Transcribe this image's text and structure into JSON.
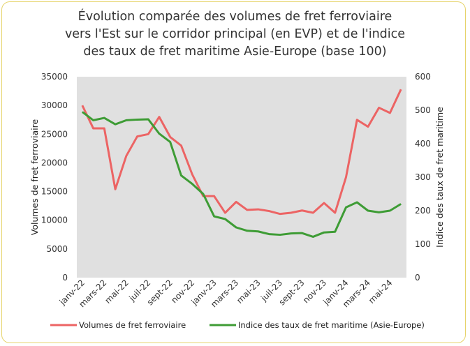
{
  "chart_data": {
    "type": "line",
    "title": "Évolution comparée des volumes de fret ferroviaire vers l'Est sur le corridor principal (en EVP) et de l'indice des taux de fret maritime Asie-Europe (base 100)",
    "title_lines": [
      "Évolution comparée des volumes de fret ferroviaire",
      "vers l'Est sur le corridor principal (en EVP) et de l'indice",
      "des taux de fret maritime Asie-Europe (base 100)"
    ],
    "ylabel_left": "Volumes de fret ferroviaire",
    "ylabel_right": "Indice des taux de fret maritime",
    "ylim_left": [
      0,
      35000
    ],
    "ylim_right": [
      0,
      600
    ],
    "yticks_left": [
      "0",
      "5000",
      "10000",
      "15000",
      "20000",
      "25000",
      "30000",
      "35000"
    ],
    "yticks_right": [
      "0",
      "100",
      "200",
      "300",
      "400",
      "500",
      "600"
    ],
    "x_tick_labels": [
      "janv-22",
      "mars-22",
      "mai-22",
      "juil-22",
      "sept-22",
      "nov-22",
      "janv-23",
      "mars-23",
      "mai-23",
      "juil-23",
      "sept-23",
      "nov-23",
      "janv-24",
      "mars-24",
      "mai-24"
    ],
    "n_points": 30,
    "grid": false,
    "plot_background": "#e0e0e0",
    "legend_position": "bottom",
    "series": [
      {
        "name": "Volumes de fret ferroviaire",
        "axis": "left",
        "color": "#ec6464",
        "values": [
          30000,
          26000,
          26000,
          15400,
          21200,
          24600,
          25000,
          28000,
          24500,
          23000,
          18000,
          14200,
          14200,
          11300,
          13200,
          11800,
          11900,
          11600,
          11100,
          11300,
          11700,
          11300,
          13000,
          11300,
          17500,
          27500,
          26300,
          29600,
          28700,
          32800
        ]
      },
      {
        "name": "Indice des taux de fret maritime (Asie-Europe)",
        "axis": "right",
        "color": "#3e9c35",
        "values": [
          495,
          470,
          477,
          458,
          470,
          472,
          473,
          430,
          405,
          305,
          280,
          250,
          183,
          175,
          150,
          140,
          138,
          130,
          128,
          132,
          133,
          122,
          135,
          137,
          210,
          225,
          200,
          195,
          200,
          220
        ]
      }
    ]
  }
}
